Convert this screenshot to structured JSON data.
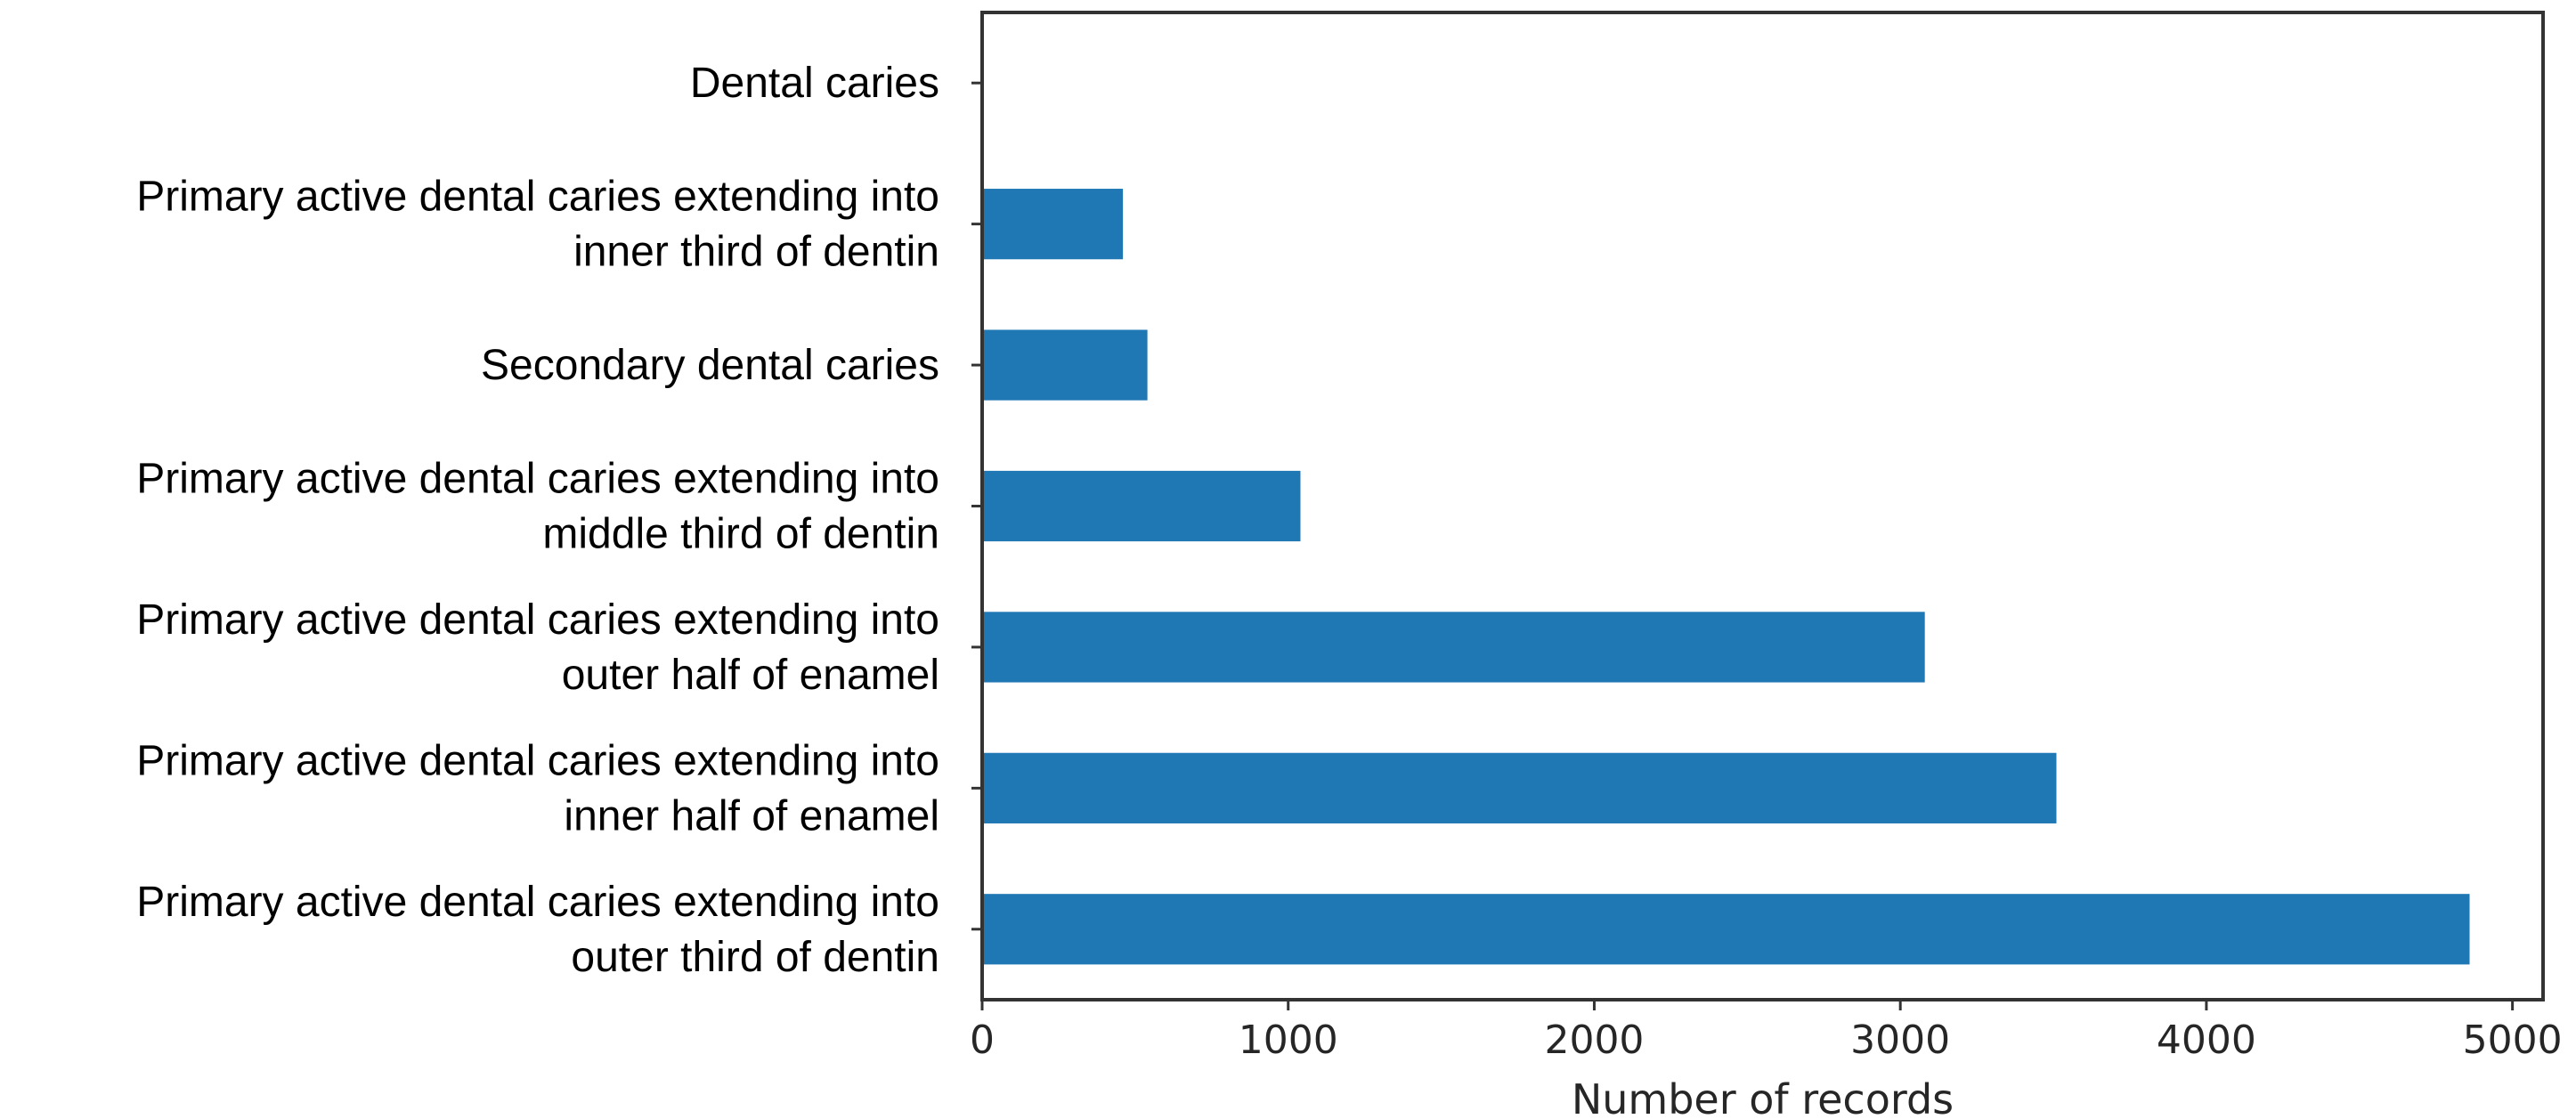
{
  "chart_data": {
    "type": "bar",
    "orientation": "horizontal",
    "categories": [
      [
        "Dental caries"
      ],
      [
        "Primary active dental caries extending into",
        "inner third of dentin"
      ],
      [
        "Secondary dental caries"
      ],
      [
        "Primary active dental caries extending into",
        "middle third of dentin"
      ],
      [
        "Primary active dental caries extending into",
        "outer half of enamel"
      ],
      [
        "Primary active dental caries extending into",
        "inner half of enamel"
      ],
      [
        "Primary active dental caries extending into",
        "outer third of dentin"
      ]
    ],
    "values": [
      0,
      460,
      540,
      1040,
      3080,
      3510,
      4860
    ],
    "xlabel": "Number of records",
    "ylabel": "",
    "xlim": [
      0,
      5100
    ],
    "xticks": [
      0,
      1000,
      2000,
      3000,
      4000,
      5000
    ],
    "grid": false,
    "bar_color": "#1f77b4"
  }
}
